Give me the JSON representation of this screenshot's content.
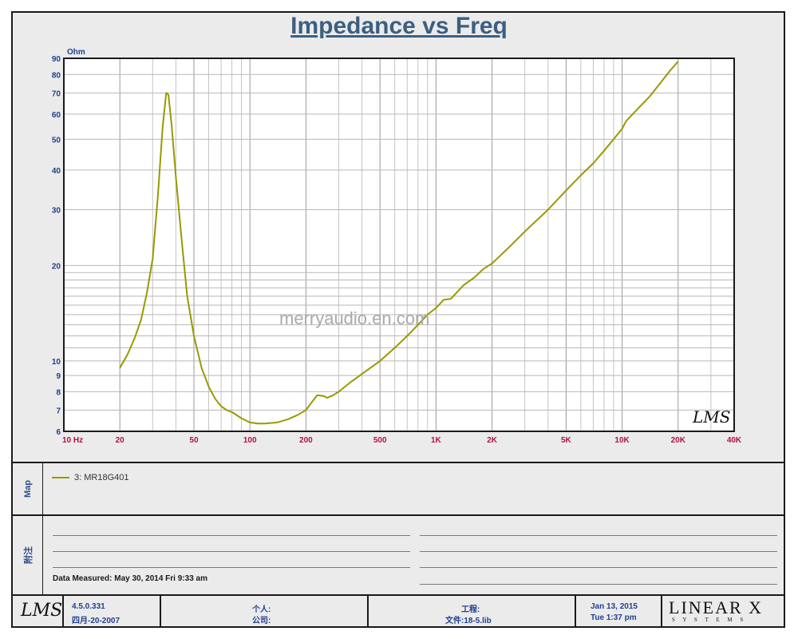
{
  "chart_data": {
    "type": "line",
    "title": "Impedance vs Freq",
    "ylabel": "Ohm",
    "xlabel": "",
    "x_scale": "log",
    "y_scale": "log",
    "xlim": [
      10,
      40000
    ],
    "ylim": [
      6,
      90
    ],
    "x_ticks": [
      {
        "v": 10,
        "label": "10  Hz"
      },
      {
        "v": 20,
        "label": "20"
      },
      {
        "v": 50,
        "label": "50"
      },
      {
        "v": 100,
        "label": "100"
      },
      {
        "v": 200,
        "label": "200"
      },
      {
        "v": 500,
        "label": "500"
      },
      {
        "v": 1000,
        "label": "1K"
      },
      {
        "v": 2000,
        "label": "2K"
      },
      {
        "v": 5000,
        "label": "5K"
      },
      {
        "v": 10000,
        "label": "10K"
      },
      {
        "v": 20000,
        "label": "20K"
      },
      {
        "v": 40000,
        "label": "40K"
      }
    ],
    "y_ticks": [
      {
        "v": 6,
        "label": "6"
      },
      {
        "v": 7,
        "label": "7"
      },
      {
        "v": 8,
        "label": "8"
      },
      {
        "v": 9,
        "label": "9"
      },
      {
        "v": 10,
        "label": "10"
      },
      {
        "v": 20,
        "label": "20"
      },
      {
        "v": 30,
        "label": "30"
      },
      {
        "v": 40,
        "label": "40"
      },
      {
        "v": 50,
        "label": "50"
      },
      {
        "v": 60,
        "label": "60"
      },
      {
        "v": 70,
        "label": "70"
      },
      {
        "v": 80,
        "label": "80"
      },
      {
        "v": 90,
        "label": "90"
      }
    ],
    "grid": true,
    "series": [
      {
        "name": "3: MR18G401",
        "color": "#999900",
        "points": [
          [
            20,
            9.5
          ],
          [
            22,
            10.5
          ],
          [
            24,
            11.8
          ],
          [
            26,
            13.5
          ],
          [
            28,
            16.5
          ],
          [
            30,
            21
          ],
          [
            32,
            33
          ],
          [
            34,
            55
          ],
          [
            35.5,
            70
          ],
          [
            36.5,
            69
          ],
          [
            38,
            55
          ],
          [
            40,
            38
          ],
          [
            43,
            24
          ],
          [
            46,
            16
          ],
          [
            50,
            12
          ],
          [
            55,
            9.5
          ],
          [
            60,
            8.3
          ],
          [
            65,
            7.6
          ],
          [
            70,
            7.2
          ],
          [
            75,
            7.0
          ],
          [
            80,
            6.9
          ],
          [
            90,
            6.6
          ],
          [
            100,
            6.4
          ],
          [
            110,
            6.35
          ],
          [
            120,
            6.35
          ],
          [
            140,
            6.4
          ],
          [
            160,
            6.55
          ],
          [
            180,
            6.75
          ],
          [
            200,
            7.0
          ],
          [
            220,
            7.55
          ],
          [
            230,
            7.8
          ],
          [
            250,
            7.75
          ],
          [
            260,
            7.65
          ],
          [
            280,
            7.8
          ],
          [
            300,
            8.0
          ],
          [
            350,
            8.6
          ],
          [
            400,
            9.1
          ],
          [
            500,
            10.0
          ],
          [
            600,
            11.0
          ],
          [
            700,
            12.0
          ],
          [
            800,
            13.0
          ],
          [
            900,
            14.0
          ],
          [
            1000,
            14.7
          ],
          [
            1100,
            15.6
          ],
          [
            1200,
            15.7
          ],
          [
            1300,
            16.5
          ],
          [
            1400,
            17.3
          ],
          [
            1600,
            18.3
          ],
          [
            1800,
            19.5
          ],
          [
            2000,
            20.3
          ],
          [
            2500,
            23.0
          ],
          [
            3000,
            25.6
          ],
          [
            4000,
            30.0
          ],
          [
            5000,
            34.5
          ],
          [
            6000,
            38.5
          ],
          [
            7000,
            42.0
          ],
          [
            8000,
            46.0
          ],
          [
            9000,
            50.0
          ],
          [
            10000,
            54.0
          ],
          [
            10500,
            57.0
          ],
          [
            12000,
            62.0
          ],
          [
            14000,
            68.0
          ],
          [
            16000,
            75.0
          ],
          [
            18000,
            82.0
          ],
          [
            20000,
            88.0
          ]
        ]
      }
    ]
  },
  "watermark": "merryaudio.en.com",
  "corner_logo": "LMS",
  "map": {
    "label": "Map",
    "entry": "3: MR18G401"
  },
  "notes": {
    "label": "附注",
    "measured": "Data Measured: May 30, 2014  Fri  9:33 am"
  },
  "footer": {
    "logo": "LMS",
    "version": "4.5.0.331",
    "version_date": "四月-20-2007",
    "person_label": "个人:",
    "company_label": "公司:",
    "project_label": "工程:",
    "file_label": "文件:18-5.lib",
    "date": "Jan 13, 2015",
    "time": "Tue  1:37 pm",
    "brand": "LINEAR X",
    "brand_sub": "S Y S T E M S"
  }
}
